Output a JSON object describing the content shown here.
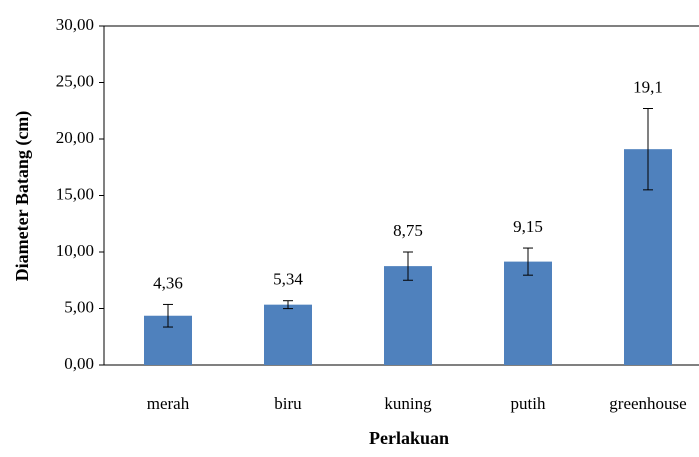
{
  "chart_data": {
    "type": "bar",
    "x_label": "Perlakuan",
    "y_label": "Diameter Batang (cm)",
    "categories": [
      "merah",
      "biru",
      "kuning",
      "putih",
      "greenhouse"
    ],
    "values": [
      4.36,
      5.34,
      8.75,
      9.15,
      19.1
    ],
    "value_labels": [
      "4,36",
      "5,34",
      "8,75",
      "9,15",
      "19,1"
    ],
    "errors": [
      1.0,
      0.35,
      1.25,
      1.2,
      3.6
    ],
    "color": "#4f81bd",
    "ylim": [
      0,
      30
    ],
    "yticks": [
      {
        "value": 0,
        "label": "0,00"
      },
      {
        "value": 5,
        "label": "5,00"
      },
      {
        "value": 10,
        "label": "10,00"
      },
      {
        "value": 15,
        "label": "15,00"
      },
      {
        "value": 20,
        "label": "20,00"
      },
      {
        "value": 25,
        "label": "25,00"
      },
      {
        "value": 30,
        "label": "30,00"
      }
    ],
    "grid": false
  }
}
